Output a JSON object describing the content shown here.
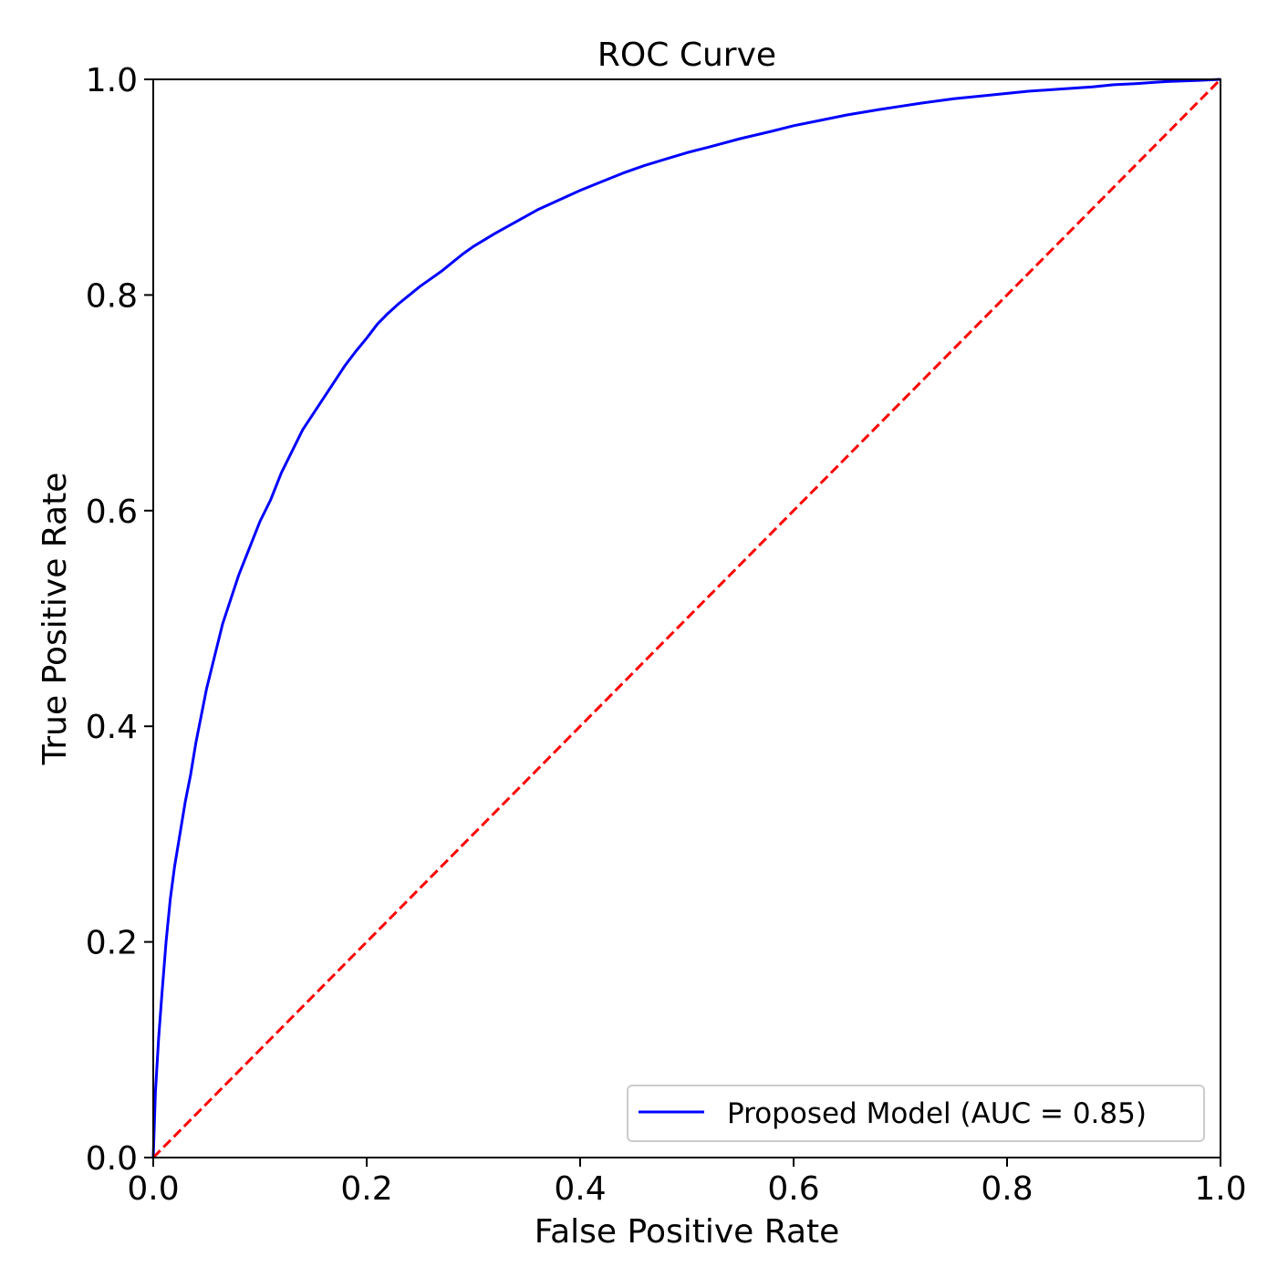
{
  "chart_data": {
    "type": "line",
    "title": "ROC Curve",
    "xlabel": "False Positive Rate",
    "ylabel": "True Positive Rate",
    "xlim": [
      0.0,
      1.0
    ],
    "ylim": [
      0.0,
      1.0
    ],
    "xticks": [
      "0.0",
      "0.2",
      "0.4",
      "0.6",
      "0.8",
      "1.0"
    ],
    "yticks": [
      "0.0",
      "0.2",
      "0.4",
      "0.6",
      "0.8",
      "1.0"
    ],
    "grid": false,
    "legend_position": "lower-right",
    "series": [
      {
        "name": "Proposed Model (AUC = 0.85)",
        "color": "#0000ff",
        "style": "solid",
        "x": [
          0.0,
          0.002,
          0.005,
          0.008,
          0.012,
          0.016,
          0.02,
          0.025,
          0.03,
          0.035,
          0.04,
          0.045,
          0.05,
          0.055,
          0.06,
          0.065,
          0.07,
          0.075,
          0.08,
          0.09,
          0.1,
          0.11,
          0.12,
          0.13,
          0.14,
          0.15,
          0.16,
          0.17,
          0.18,
          0.19,
          0.2,
          0.21,
          0.22,
          0.23,
          0.24,
          0.25,
          0.26,
          0.27,
          0.28,
          0.29,
          0.3,
          0.32,
          0.34,
          0.36,
          0.38,
          0.4,
          0.42,
          0.44,
          0.46,
          0.48,
          0.5,
          0.52,
          0.55,
          0.58,
          0.6,
          0.62,
          0.65,
          0.68,
          0.7,
          0.72,
          0.75,
          0.78,
          0.8,
          0.82,
          0.85,
          0.88,
          0.9,
          0.92,
          0.95,
          0.98,
          1.0
        ],
        "y": [
          0.0,
          0.06,
          0.11,
          0.15,
          0.2,
          0.24,
          0.27,
          0.3,
          0.33,
          0.355,
          0.385,
          0.41,
          0.435,
          0.455,
          0.475,
          0.495,
          0.51,
          0.525,
          0.54,
          0.565,
          0.59,
          0.61,
          0.635,
          0.655,
          0.675,
          0.69,
          0.705,
          0.72,
          0.735,
          0.748,
          0.76,
          0.773,
          0.783,
          0.792,
          0.8,
          0.808,
          0.815,
          0.822,
          0.83,
          0.838,
          0.845,
          0.857,
          0.868,
          0.879,
          0.888,
          0.897,
          0.905,
          0.913,
          0.92,
          0.926,
          0.932,
          0.937,
          0.945,
          0.952,
          0.957,
          0.961,
          0.967,
          0.972,
          0.975,
          0.978,
          0.982,
          0.985,
          0.987,
          0.989,
          0.991,
          0.993,
          0.995,
          0.996,
          0.998,
          0.999,
          1.0
        ]
      },
      {
        "name": "",
        "color": "#ff0000",
        "style": "dashed",
        "x": [
          0.0,
          1.0
        ],
        "y": [
          0.0,
          1.0
        ]
      }
    ]
  }
}
